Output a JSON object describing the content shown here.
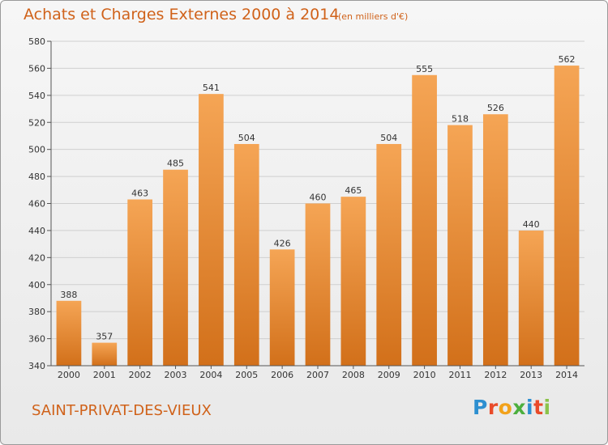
{
  "header": {
    "title": "Achats et Charges Externes 2000 à 2014",
    "unit_note": "(en milliers d'€)"
  },
  "footer": {
    "commune": "SAINT-PRIVAT-DES-VIEUX",
    "logo_letters": [
      "P",
      "r",
      "o",
      "x",
      "i",
      "t",
      "i"
    ]
  },
  "colors": {
    "bar_top": "#f5a555",
    "bar_bottom": "#d2701a",
    "title": "#d0621a"
  },
  "chart_data": {
    "type": "bar",
    "title": "Achats et Charges Externes 2000 à 2014",
    "subtitle": "(en milliers d'€)",
    "xlabel": "",
    "ylabel": "",
    "categories": [
      "2000",
      "2001",
      "2002",
      "2003",
      "2004",
      "2005",
      "2006",
      "2007",
      "2008",
      "2009",
      "2010",
      "2011",
      "2012",
      "2013",
      "2014"
    ],
    "values": [
      388,
      357,
      463,
      485,
      541,
      504,
      426,
      460,
      465,
      504,
      555,
      518,
      526,
      440,
      562
    ],
    "ylim": [
      340,
      580
    ],
    "yticks": [
      340,
      360,
      380,
      400,
      420,
      440,
      460,
      480,
      500,
      520,
      540,
      560,
      580
    ],
    "grid": true,
    "data_labels": true
  }
}
